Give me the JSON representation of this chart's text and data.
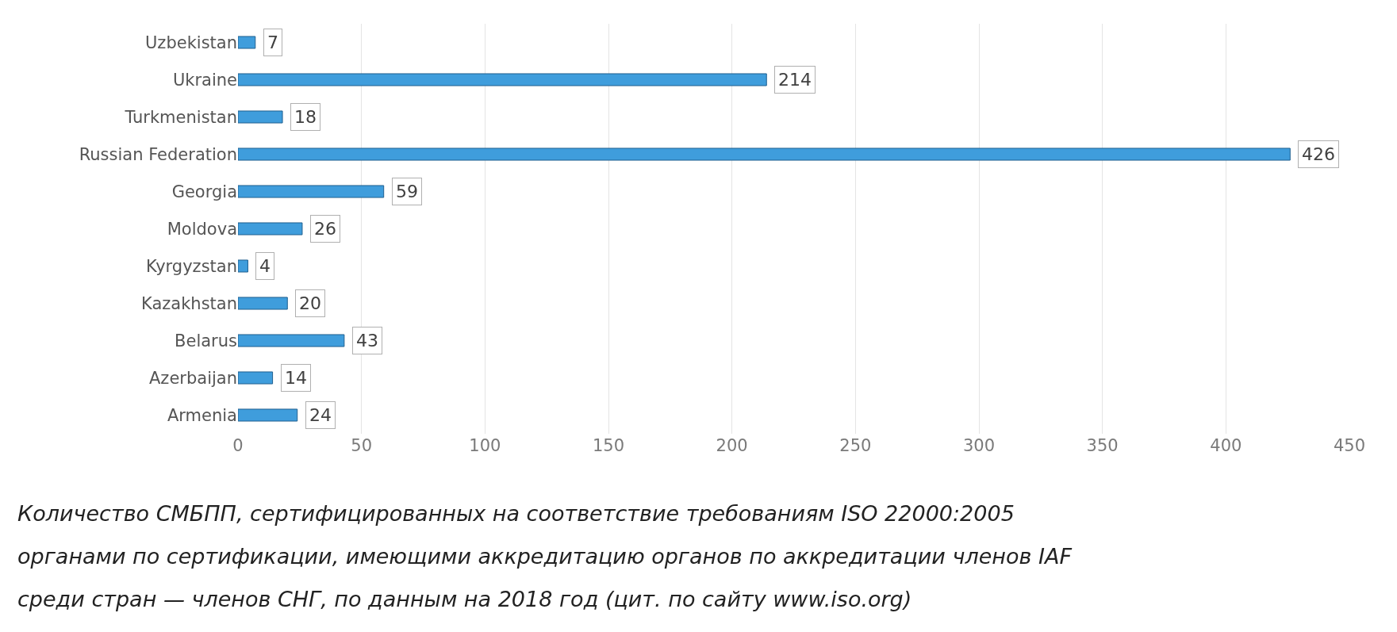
{
  "chart_data": {
    "type": "bar",
    "orientation": "horizontal",
    "categories": [
      "Uzbekistan",
      "Ukraine",
      "Turkmenistan",
      "Russian Federation",
      "Georgia",
      "Moldova",
      "Kyrgyzstan",
      "Kazakhstan",
      "Belarus",
      "Azerbaijan",
      "Armenia"
    ],
    "values": [
      7,
      214,
      18,
      426,
      59,
      26,
      4,
      20,
      43,
      14,
      24
    ],
    "color": "#3f9ddc",
    "xlim": [
      0,
      450
    ],
    "xticks": [
      0,
      50,
      100,
      150,
      200,
      250,
      300,
      350,
      400,
      450
    ],
    "grid": "x",
    "data_labels": true,
    "legend": false,
    "annotations": [
      "Количество СМБПП, сертифицированных на соответствие требованиям ISO 22000:2005",
      "органами по сертификации, имеющими аккредитацию органов по аккредитации членов IAF",
      "среди стран — членов СНГ, по данным на 2018 год (цит. по сайту www.iso.org)"
    ]
  }
}
